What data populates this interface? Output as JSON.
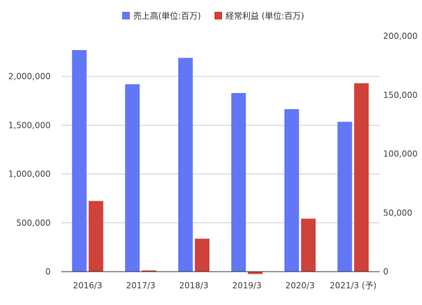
{
  "chart_data": {
    "type": "bar",
    "categories": [
      "2016/3",
      "2017/3",
      "2018/3",
      "2019/3",
      "2020/3",
      "2021/3 (予)"
    ],
    "series": [
      {
        "name": "売上高(単位:百万)",
        "axis": "left",
        "color": "#6277f5",
        "values": [
          2270000,
          1920000,
          2190000,
          1830000,
          1665000,
          1535000
        ]
      },
      {
        "name": "経常利益 (単位:百万)",
        "axis": "right",
        "color": "#d04139",
        "values": [
          60000,
          1000,
          28000,
          -2000,
          45000,
          160000
        ]
      }
    ],
    "y_left": {
      "min": 0,
      "max": 2500000,
      "ticks": [
        0,
        500000,
        1000000,
        1500000,
        2000000
      ],
      "tick_labels": [
        "0",
        "500,000",
        "1,000,000",
        "1,500,000",
        "2,000,000"
      ]
    },
    "y_right": {
      "min": 0,
      "max": 200000,
      "ticks": [
        0,
        50000,
        100000,
        150000,
        200000
      ],
      "tick_labels": [
        "0",
        "50,000",
        "100,000",
        "150,000",
        "200,000"
      ]
    },
    "grid": true,
    "legend_position": "top"
  }
}
